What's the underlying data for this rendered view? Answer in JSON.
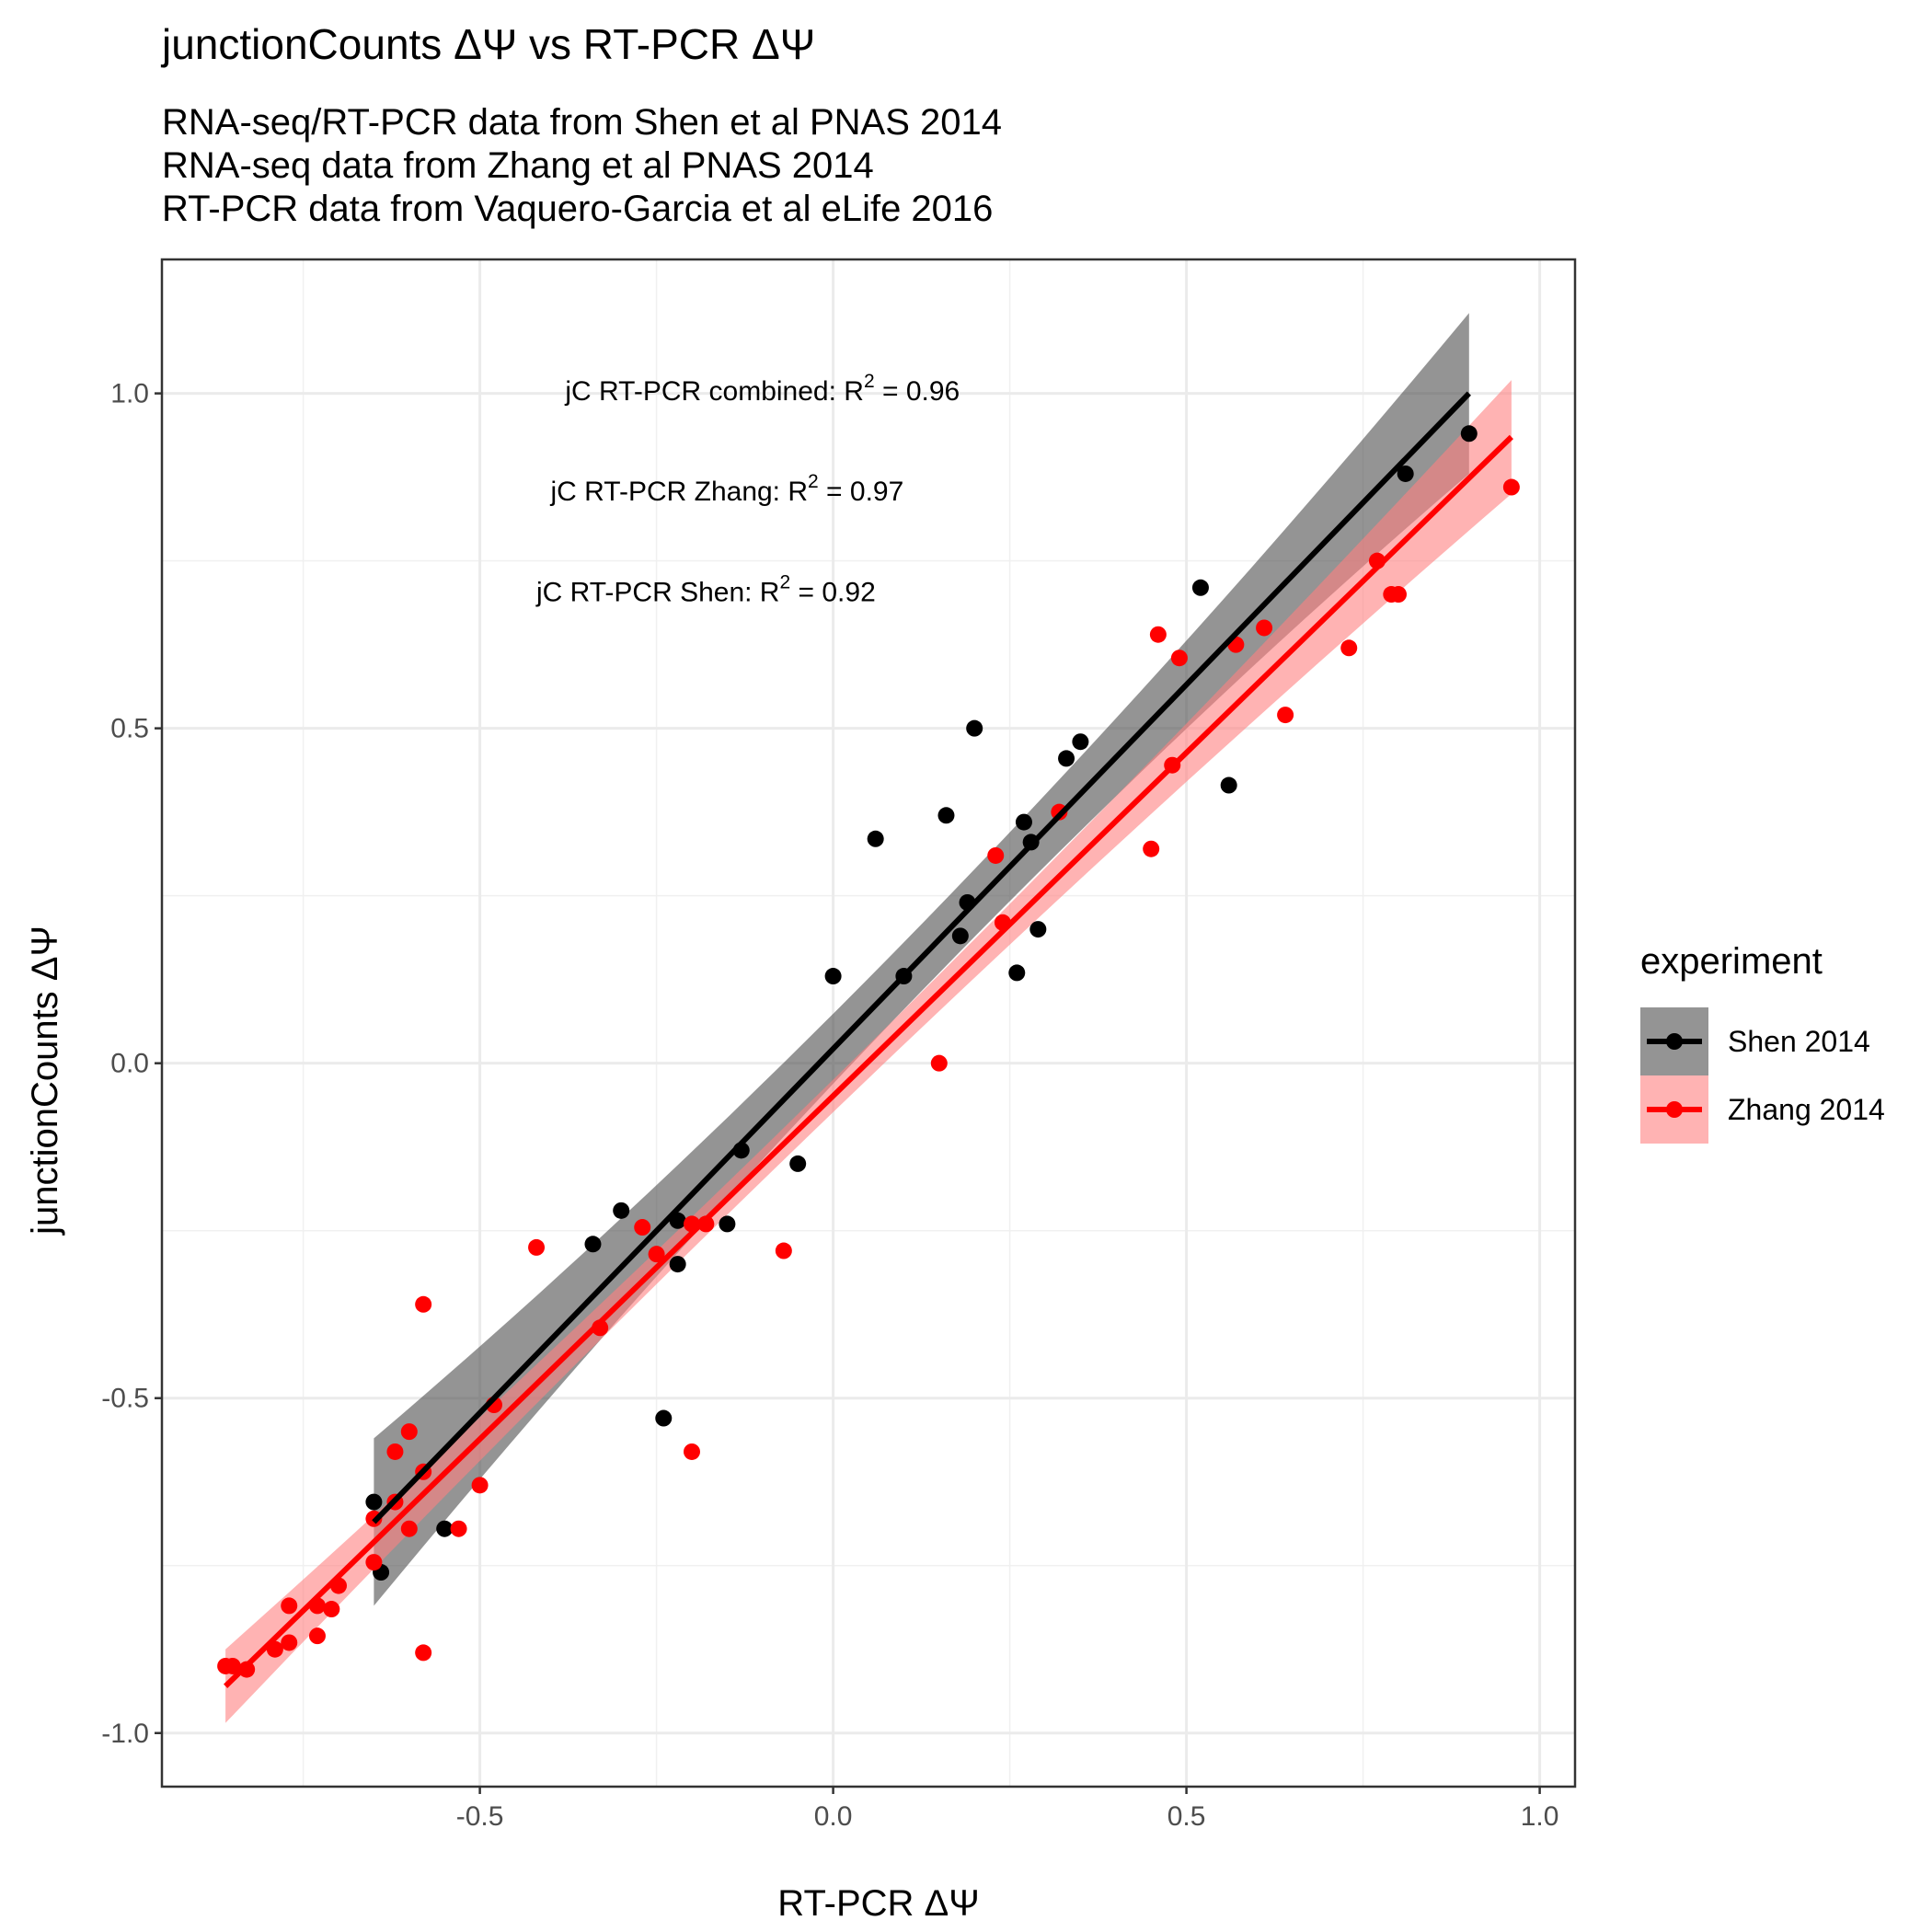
{
  "chart_data": {
    "type": "scatter",
    "title": "junctionCounts ΔΨ vs RT-PCR ΔΨ",
    "subtitle": [
      "RNA-seq/RT-PCR data from Shen et al PNAS 2014",
      "RNA-seq data from Zhang et al PNAS 2014",
      "RT-PCR data from Vaquero-Garcia et al eLife 2016"
    ],
    "xlabel": "RT-PCR ΔΨ",
    "ylabel": "junctionCounts ΔΨ",
    "xlim": [
      -0.95,
      1.05
    ],
    "ylim": [
      -1.08,
      1.2
    ],
    "x_ticks": [
      -0.5,
      0.0,
      0.5,
      1.0
    ],
    "x_tick_labels": [
      "-0.5",
      "0.0",
      "0.5",
      "1.0"
    ],
    "y_ticks": [
      -1.0,
      -0.5,
      0.0,
      0.5,
      1.0
    ],
    "y_tick_labels": [
      "-1.0",
      "-0.5",
      "0.0",
      "0.5",
      "1.0"
    ],
    "grid": true,
    "legend": {
      "title": "experiment",
      "position": "right"
    },
    "annotations": [
      {
        "x": -0.1,
        "y": 0.99,
        "prefix": "jC RT-PCR combined: R",
        "sup": "2",
        "suffix": " = 0.96"
      },
      {
        "x": -0.15,
        "y": 0.84,
        "prefix": "jC RT-PCR Zhang: R",
        "sup": "2",
        "suffix": " = 0.97"
      },
      {
        "x": -0.18,
        "y": 0.69,
        "prefix": "jC RT-PCR Shen: R",
        "sup": "2",
        "suffix": " = 0.92"
      }
    ],
    "series": [
      {
        "name": "Shen 2014",
        "color": "#000000",
        "band_color": "#4d4d4d",
        "fit": {
          "x0": -0.65,
          "x1": 0.9,
          "y0": -0.685,
          "y1": 1.0
        },
        "band_halfwidth": {
          "at_x0": 0.125,
          "at_mid": 0.05,
          "at_x1": 0.12
        },
        "points": [
          [
            0.9,
            0.94
          ],
          [
            0.81,
            0.88
          ],
          [
            0.52,
            0.71
          ],
          [
            0.56,
            0.415
          ],
          [
            0.35,
            0.48
          ],
          [
            0.33,
            0.455
          ],
          [
            0.2,
            0.5
          ],
          [
            0.16,
            0.37
          ],
          [
            0.27,
            0.36
          ],
          [
            0.28,
            0.33
          ],
          [
            0.06,
            0.335
          ],
          [
            0.19,
            0.24
          ],
          [
            0.18,
            0.19
          ],
          [
            0.29,
            0.2
          ],
          [
            0.26,
            0.135
          ],
          [
            0.0,
            0.13
          ],
          [
            0.1,
            0.13
          ],
          [
            -0.13,
            -0.13
          ],
          [
            -0.05,
            -0.15
          ],
          [
            -0.3,
            -0.22
          ],
          [
            -0.22,
            -0.235
          ],
          [
            -0.15,
            -0.24
          ],
          [
            -0.34,
            -0.27
          ],
          [
            -0.22,
            -0.3
          ],
          [
            -0.24,
            -0.53
          ],
          [
            -0.65,
            -0.655
          ],
          [
            -0.55,
            -0.695
          ],
          [
            -0.64,
            -0.76
          ]
        ]
      },
      {
        "name": "Zhang 2014",
        "color": "#ff0000",
        "band_color": "#ff8080",
        "fit": {
          "x0": -0.86,
          "x1": 0.96,
          "y0": -0.93,
          "y1": 0.935
        },
        "band_halfwidth": {
          "at_x0": 0.055,
          "at_mid": 0.025,
          "at_x1": 0.085
        },
        "points": [
          [
            0.96,
            0.86
          ],
          [
            0.77,
            0.75
          ],
          [
            0.79,
            0.7
          ],
          [
            0.8,
            0.7
          ],
          [
            0.73,
            0.62
          ],
          [
            0.64,
            0.52
          ],
          [
            0.46,
            0.64
          ],
          [
            0.49,
            0.605
          ],
          [
            0.57,
            0.625
          ],
          [
            0.61,
            0.65
          ],
          [
            0.48,
            0.445
          ],
          [
            0.45,
            0.32
          ],
          [
            0.32,
            0.375
          ],
          [
            0.23,
            0.31
          ],
          [
            0.24,
            0.21
          ],
          [
            0.15,
            0.0
          ],
          [
            -0.07,
            -0.28
          ],
          [
            -0.2,
            -0.24
          ],
          [
            -0.18,
            -0.24
          ],
          [
            -0.27,
            -0.245
          ],
          [
            -0.25,
            -0.285
          ],
          [
            -0.42,
            -0.275
          ],
          [
            -0.33,
            -0.395
          ],
          [
            -0.58,
            -0.36
          ],
          [
            -0.48,
            -0.51
          ],
          [
            -0.2,
            -0.58
          ],
          [
            -0.6,
            -0.55
          ],
          [
            -0.62,
            -0.58
          ],
          [
            -0.58,
            -0.61
          ],
          [
            -0.5,
            -0.63
          ],
          [
            -0.62,
            -0.655
          ],
          [
            -0.65,
            -0.68
          ],
          [
            -0.6,
            -0.695
          ],
          [
            -0.53,
            -0.695
          ],
          [
            -0.65,
            -0.745
          ],
          [
            -0.7,
            -0.78
          ],
          [
            -0.77,
            -0.81
          ],
          [
            -0.73,
            -0.81
          ],
          [
            -0.71,
            -0.815
          ],
          [
            -0.73,
            -0.855
          ],
          [
            -0.77,
            -0.865
          ],
          [
            -0.79,
            -0.875
          ],
          [
            -0.58,
            -0.88
          ],
          [
            -0.86,
            -0.9
          ],
          [
            -0.85,
            -0.9
          ],
          [
            -0.83,
            -0.905
          ]
        ]
      }
    ]
  }
}
